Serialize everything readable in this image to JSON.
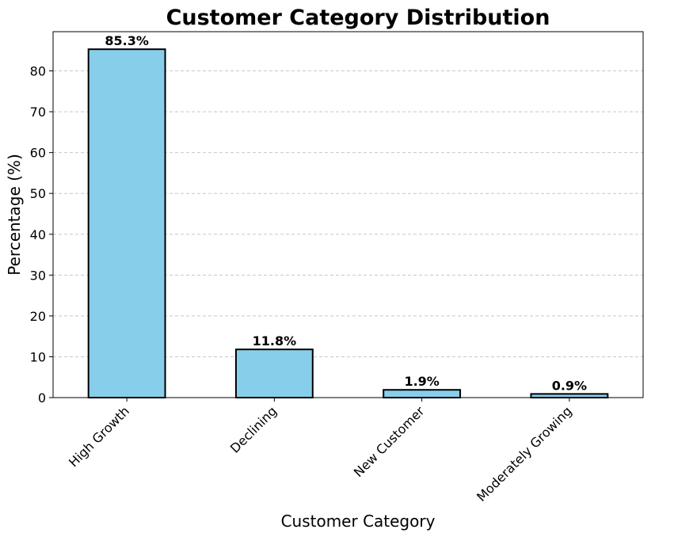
{
  "chart_data": {
    "type": "bar",
    "title": "Customer Category Distribution",
    "xlabel": "Customer Category",
    "ylabel": "Percentage (%)",
    "categories": [
      "High Growth",
      "Declining",
      "New Customer",
      "Moderately Growing"
    ],
    "values": [
      85.3,
      11.8,
      1.9,
      0.9
    ],
    "value_labels": [
      "85.3%",
      "11.8%",
      "1.9%",
      "0.9%"
    ],
    "ylim": [
      0,
      89.6
    ],
    "yticks": [
      0,
      10,
      20,
      30,
      40,
      50,
      60,
      70,
      80
    ],
    "ytick_labels": [
      "0",
      "10",
      "20",
      "30",
      "40",
      "50",
      "60",
      "70",
      "80"
    ],
    "grid": "y-axis dashed",
    "bar_color": "#87CEEB",
    "edge_color": "#000000",
    "grid_color": "#c8c8c8"
  }
}
